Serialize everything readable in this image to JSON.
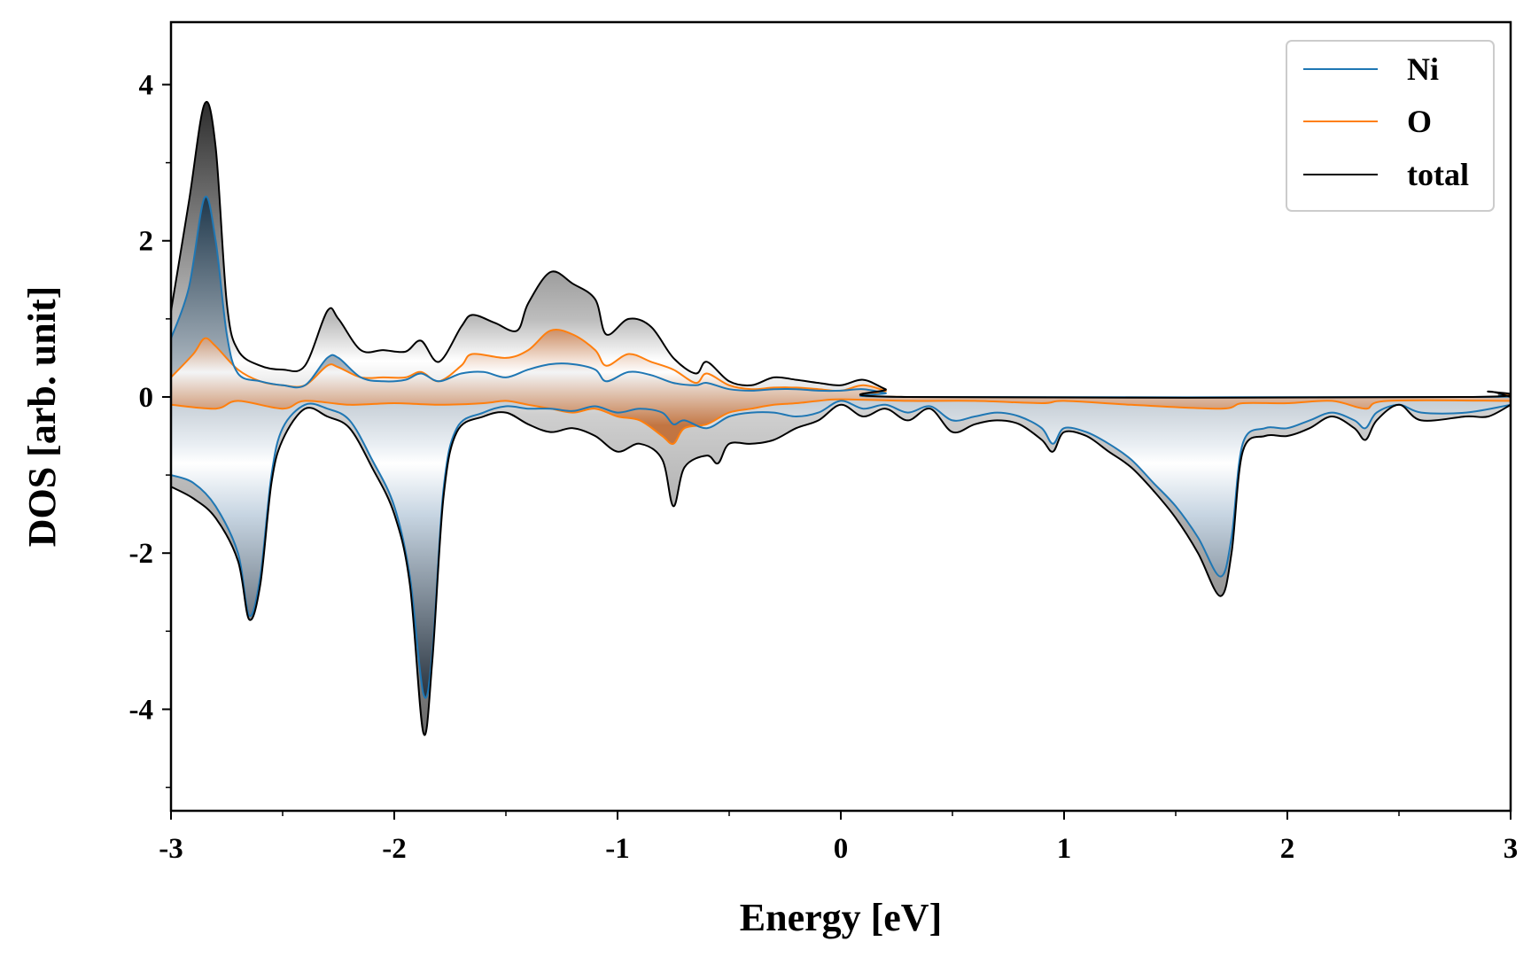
{
  "chart_data": {
    "type": "line",
    "title": "",
    "xlabel": "Energy [eV]",
    "ylabel": "DOS [arb. unit]",
    "xlim": [
      -3,
      3
    ],
    "ylim": [
      -5.3,
      4.8
    ],
    "x_major_ticks": [
      -3,
      -2,
      -1,
      0,
      1,
      2,
      3
    ],
    "x_tick_labels": [
      "-3",
      "-2",
      "-1",
      "0",
      "1",
      "2",
      "3"
    ],
    "x_minor_ticks": [
      -2.5,
      -1.5,
      -0.5,
      0.5,
      1.5,
      2.5
    ],
    "y_major_ticks": [
      -4,
      -2,
      0,
      2,
      4
    ],
    "y_tick_labels": [
      "-4",
      "-2",
      "0",
      "2",
      "4"
    ],
    "y_minor_ticks": [
      -5,
      -3,
      -1,
      1,
      3
    ],
    "grid": false,
    "legend_position": "top-right",
    "fill": "gradient shading between each curve and zero",
    "series": [
      {
        "name": "Ni",
        "color": "#1f77b4",
        "spin_up": [
          [
            -3.0,
            0.75
          ],
          [
            -2.92,
            1.4
          ],
          [
            -2.85,
            2.55
          ],
          [
            -2.8,
            2.0
          ],
          [
            -2.75,
            0.8
          ],
          [
            -2.7,
            0.3
          ],
          [
            -2.6,
            0.2
          ],
          [
            -2.5,
            0.15
          ],
          [
            -2.4,
            0.15
          ],
          [
            -2.3,
            0.5
          ],
          [
            -2.25,
            0.5
          ],
          [
            -2.15,
            0.25
          ],
          [
            -2.05,
            0.2
          ],
          [
            -1.95,
            0.22
          ],
          [
            -1.88,
            0.3
          ],
          [
            -1.8,
            0.2
          ],
          [
            -1.7,
            0.3
          ],
          [
            -1.6,
            0.32
          ],
          [
            -1.5,
            0.25
          ],
          [
            -1.4,
            0.35
          ],
          [
            -1.3,
            0.42
          ],
          [
            -1.2,
            0.42
          ],
          [
            -1.1,
            0.35
          ],
          [
            -1.05,
            0.2
          ],
          [
            -0.95,
            0.32
          ],
          [
            -0.85,
            0.28
          ],
          [
            -0.75,
            0.18
          ],
          [
            -0.65,
            0.15
          ],
          [
            -0.6,
            0.18
          ],
          [
            -0.5,
            0.1
          ],
          [
            -0.4,
            0.08
          ],
          [
            -0.3,
            0.1
          ],
          [
            -0.2,
            0.1
          ],
          [
            -0.1,
            0.08
          ],
          [
            0.0,
            0.08
          ],
          [
            0.1,
            0.1
          ],
          [
            0.2,
            0.05
          ],
          [
            0.3,
            0.0
          ],
          [
            2.8,
            0.0
          ],
          [
            2.95,
            0.02
          ],
          [
            3.0,
            0.0
          ]
        ],
        "spin_down": [
          [
            -3.0,
            -1.0
          ],
          [
            -2.9,
            -1.1
          ],
          [
            -2.8,
            -1.4
          ],
          [
            -2.7,
            -2.0
          ],
          [
            -2.65,
            -2.8
          ],
          [
            -2.6,
            -2.3
          ],
          [
            -2.55,
            -1.0
          ],
          [
            -2.5,
            -0.4
          ],
          [
            -2.4,
            -0.1
          ],
          [
            -2.3,
            -0.15
          ],
          [
            -2.2,
            -0.3
          ],
          [
            -2.1,
            -0.8
          ],
          [
            -2.0,
            -1.4
          ],
          [
            -1.93,
            -2.3
          ],
          [
            -1.87,
            -3.8
          ],
          [
            -1.83,
            -3.3
          ],
          [
            -1.78,
            -1.2
          ],
          [
            -1.72,
            -0.4
          ],
          [
            -1.6,
            -0.2
          ],
          [
            -1.5,
            -0.12
          ],
          [
            -1.4,
            -0.15
          ],
          [
            -1.3,
            -0.15
          ],
          [
            -1.2,
            -0.18
          ],
          [
            -1.1,
            -0.12
          ],
          [
            -1.0,
            -0.2
          ],
          [
            -0.9,
            -0.15
          ],
          [
            -0.8,
            -0.2
          ],
          [
            -0.75,
            -0.35
          ],
          [
            -0.7,
            -0.3
          ],
          [
            -0.6,
            -0.4
          ],
          [
            -0.5,
            -0.25
          ],
          [
            -0.4,
            -0.2
          ],
          [
            -0.3,
            -0.2
          ],
          [
            -0.2,
            -0.25
          ],
          [
            -0.1,
            -0.2
          ],
          [
            0.0,
            -0.05
          ],
          [
            0.1,
            -0.15
          ],
          [
            0.2,
            -0.1
          ],
          [
            0.3,
            -0.2
          ],
          [
            0.4,
            -0.12
          ],
          [
            0.5,
            -0.3
          ],
          [
            0.6,
            -0.25
          ],
          [
            0.7,
            -0.2
          ],
          [
            0.8,
            -0.25
          ],
          [
            0.9,
            -0.4
          ],
          [
            0.95,
            -0.6
          ],
          [
            1.0,
            -0.4
          ],
          [
            1.1,
            -0.45
          ],
          [
            1.2,
            -0.6
          ],
          [
            1.3,
            -0.8
          ],
          [
            1.4,
            -1.1
          ],
          [
            1.5,
            -1.4
          ],
          [
            1.6,
            -1.8
          ],
          [
            1.7,
            -2.3
          ],
          [
            1.75,
            -1.8
          ],
          [
            1.8,
            -0.6
          ],
          [
            1.9,
            -0.4
          ],
          [
            2.0,
            -0.4
          ],
          [
            2.1,
            -0.3
          ],
          [
            2.2,
            -0.2
          ],
          [
            2.3,
            -0.3
          ],
          [
            2.35,
            -0.4
          ],
          [
            2.4,
            -0.2
          ],
          [
            2.5,
            -0.1
          ],
          [
            2.6,
            -0.2
          ],
          [
            2.8,
            -0.2
          ],
          [
            3.0,
            -0.1
          ]
        ]
      },
      {
        "name": "O",
        "color": "#ff7f0e",
        "spin_up": [
          [
            -3.0,
            0.25
          ],
          [
            -2.9,
            0.55
          ],
          [
            -2.85,
            0.75
          ],
          [
            -2.8,
            0.65
          ],
          [
            -2.7,
            0.35
          ],
          [
            -2.6,
            0.2
          ],
          [
            -2.5,
            0.15
          ],
          [
            -2.4,
            0.15
          ],
          [
            -2.3,
            0.4
          ],
          [
            -2.25,
            0.38
          ],
          [
            -2.15,
            0.25
          ],
          [
            -2.05,
            0.25
          ],
          [
            -1.95,
            0.25
          ],
          [
            -1.88,
            0.32
          ],
          [
            -1.8,
            0.2
          ],
          [
            -1.7,
            0.4
          ],
          [
            -1.65,
            0.55
          ],
          [
            -1.5,
            0.5
          ],
          [
            -1.4,
            0.6
          ],
          [
            -1.3,
            0.85
          ],
          [
            -1.2,
            0.8
          ],
          [
            -1.1,
            0.6
          ],
          [
            -1.05,
            0.4
          ],
          [
            -0.95,
            0.55
          ],
          [
            -0.85,
            0.45
          ],
          [
            -0.75,
            0.35
          ],
          [
            -0.65,
            0.18
          ],
          [
            -0.6,
            0.3
          ],
          [
            -0.5,
            0.15
          ],
          [
            -0.4,
            0.1
          ],
          [
            -0.3,
            0.12
          ],
          [
            -0.2,
            0.12
          ],
          [
            -0.1,
            0.1
          ],
          [
            0.0,
            0.08
          ],
          [
            0.1,
            0.15
          ],
          [
            0.2,
            0.08
          ],
          [
            0.3,
            0.0
          ],
          [
            2.8,
            0.0
          ],
          [
            2.95,
            0.03
          ],
          [
            3.0,
            0.0
          ]
        ],
        "spin_down": [
          [
            -3.0,
            -0.1
          ],
          [
            -2.8,
            -0.15
          ],
          [
            -2.7,
            -0.05
          ],
          [
            -2.5,
            -0.15
          ],
          [
            -2.4,
            -0.05
          ],
          [
            -2.2,
            -0.1
          ],
          [
            -2.0,
            -0.08
          ],
          [
            -1.8,
            -0.1
          ],
          [
            -1.6,
            -0.08
          ],
          [
            -1.5,
            -0.05
          ],
          [
            -1.4,
            -0.1
          ],
          [
            -1.3,
            -0.15
          ],
          [
            -1.2,
            -0.2
          ],
          [
            -1.1,
            -0.15
          ],
          [
            -1.0,
            -0.25
          ],
          [
            -0.9,
            -0.3
          ],
          [
            -0.8,
            -0.5
          ],
          [
            -0.75,
            -0.6
          ],
          [
            -0.7,
            -0.4
          ],
          [
            -0.6,
            -0.35
          ],
          [
            -0.5,
            -0.2
          ],
          [
            -0.4,
            -0.15
          ],
          [
            -0.3,
            -0.1
          ],
          [
            -0.2,
            -0.08
          ],
          [
            -0.1,
            -0.05
          ],
          [
            0.0,
            -0.03
          ],
          [
            0.3,
            -0.05
          ],
          [
            0.6,
            -0.05
          ],
          [
            0.9,
            -0.08
          ],
          [
            1.0,
            -0.05
          ],
          [
            1.3,
            -0.1
          ],
          [
            1.7,
            -0.15
          ],
          [
            1.8,
            -0.08
          ],
          [
            2.0,
            -0.08
          ],
          [
            2.2,
            -0.05
          ],
          [
            2.35,
            -0.15
          ],
          [
            2.45,
            -0.05
          ],
          [
            3.0,
            -0.05
          ]
        ]
      },
      {
        "name": "total",
        "color": "#000000",
        "spin_up": [
          [
            -3.0,
            1.1
          ],
          [
            -2.92,
            2.5
          ],
          [
            -2.85,
            3.75
          ],
          [
            -2.8,
            3.2
          ],
          [
            -2.75,
            1.2
          ],
          [
            -2.7,
            0.6
          ],
          [
            -2.6,
            0.4
          ],
          [
            -2.5,
            0.35
          ],
          [
            -2.4,
            0.4
          ],
          [
            -2.3,
            1.1
          ],
          [
            -2.25,
            1.0
          ],
          [
            -2.15,
            0.6
          ],
          [
            -2.05,
            0.6
          ],
          [
            -1.95,
            0.58
          ],
          [
            -1.88,
            0.72
          ],
          [
            -1.8,
            0.45
          ],
          [
            -1.7,
            0.9
          ],
          [
            -1.65,
            1.05
          ],
          [
            -1.55,
            0.95
          ],
          [
            -1.45,
            0.85
          ],
          [
            -1.4,
            1.2
          ],
          [
            -1.3,
            1.6
          ],
          [
            -1.2,
            1.45
          ],
          [
            -1.1,
            1.25
          ],
          [
            -1.05,
            0.8
          ],
          [
            -0.95,
            1.0
          ],
          [
            -0.85,
            0.9
          ],
          [
            -0.75,
            0.5
          ],
          [
            -0.65,
            0.3
          ],
          [
            -0.6,
            0.45
          ],
          [
            -0.5,
            0.2
          ],
          [
            -0.4,
            0.15
          ],
          [
            -0.3,
            0.25
          ],
          [
            -0.2,
            0.22
          ],
          [
            -0.1,
            0.18
          ],
          [
            0.0,
            0.15
          ],
          [
            0.1,
            0.22
          ],
          [
            0.2,
            0.1
          ],
          [
            0.3,
            0.0
          ],
          [
            2.8,
            0.0
          ],
          [
            2.9,
            0.07
          ],
          [
            3.0,
            0.0
          ]
        ],
        "spin_down": [
          [
            -3.0,
            -1.15
          ],
          [
            -2.9,
            -1.3
          ],
          [
            -2.8,
            -1.55
          ],
          [
            -2.7,
            -2.1
          ],
          [
            -2.65,
            -2.85
          ],
          [
            -2.6,
            -2.4
          ],
          [
            -2.55,
            -1.1
          ],
          [
            -2.5,
            -0.55
          ],
          [
            -2.4,
            -0.15
          ],
          [
            -2.3,
            -0.25
          ],
          [
            -2.2,
            -0.4
          ],
          [
            -2.1,
            -0.9
          ],
          [
            -2.0,
            -1.5
          ],
          [
            -1.93,
            -2.4
          ],
          [
            -1.87,
            -4.3
          ],
          [
            -1.83,
            -3.4
          ],
          [
            -1.78,
            -1.3
          ],
          [
            -1.72,
            -0.45
          ],
          [
            -1.6,
            -0.25
          ],
          [
            -1.5,
            -0.2
          ],
          [
            -1.4,
            -0.35
          ],
          [
            -1.3,
            -0.45
          ],
          [
            -1.2,
            -0.4
          ],
          [
            -1.1,
            -0.5
          ],
          [
            -1.0,
            -0.7
          ],
          [
            -0.9,
            -0.6
          ],
          [
            -0.8,
            -0.8
          ],
          [
            -0.75,
            -1.4
          ],
          [
            -0.7,
            -0.9
          ],
          [
            -0.6,
            -0.75
          ],
          [
            -0.55,
            -0.85
          ],
          [
            -0.5,
            -0.6
          ],
          [
            -0.4,
            -0.6
          ],
          [
            -0.3,
            -0.55
          ],
          [
            -0.2,
            -0.4
          ],
          [
            -0.1,
            -0.3
          ],
          [
            0.0,
            -0.1
          ],
          [
            0.1,
            -0.25
          ],
          [
            0.2,
            -0.15
          ],
          [
            0.3,
            -0.3
          ],
          [
            0.4,
            -0.15
          ],
          [
            0.5,
            -0.45
          ],
          [
            0.6,
            -0.35
          ],
          [
            0.7,
            -0.3
          ],
          [
            0.8,
            -0.35
          ],
          [
            0.9,
            -0.55
          ],
          [
            0.95,
            -0.7
          ],
          [
            1.0,
            -0.45
          ],
          [
            1.1,
            -0.5
          ],
          [
            1.2,
            -0.7
          ],
          [
            1.3,
            -0.9
          ],
          [
            1.4,
            -1.2
          ],
          [
            1.5,
            -1.55
          ],
          [
            1.6,
            -2.0
          ],
          [
            1.7,
            -2.55
          ],
          [
            1.75,
            -2.0
          ],
          [
            1.8,
            -0.7
          ],
          [
            1.9,
            -0.5
          ],
          [
            2.0,
            -0.5
          ],
          [
            2.1,
            -0.4
          ],
          [
            2.2,
            -0.25
          ],
          [
            2.3,
            -0.4
          ],
          [
            2.35,
            -0.55
          ],
          [
            2.4,
            -0.3
          ],
          [
            2.5,
            -0.1
          ],
          [
            2.6,
            -0.3
          ],
          [
            2.8,
            -0.25
          ],
          [
            2.9,
            -0.25
          ],
          [
            3.0,
            -0.1
          ]
        ]
      }
    ]
  }
}
